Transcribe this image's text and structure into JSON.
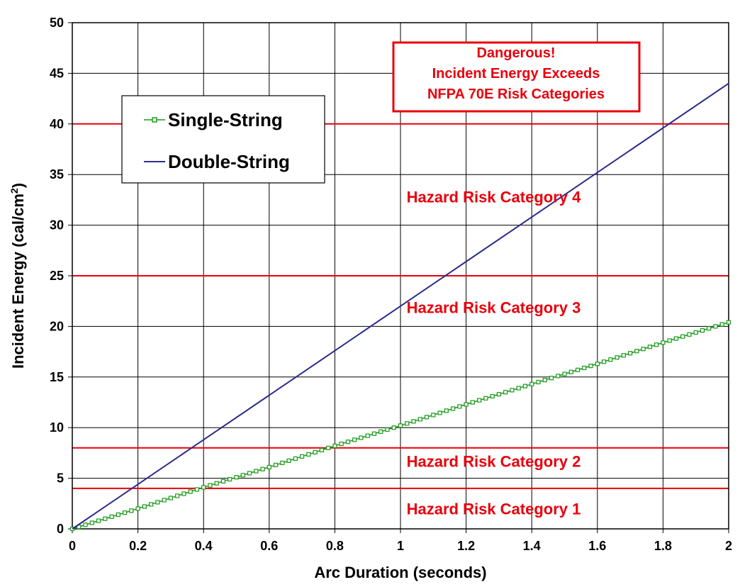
{
  "chart_data": {
    "type": "line",
    "title": "",
    "xlabel": "Arc Duration (seconds)",
    "ylabel_main": "Incident Energy (cal/cm",
    "ylabel_sup": "2",
    "ylabel_close": ")",
    "xlim": [
      0,
      2
    ],
    "ylim": [
      0,
      50
    ],
    "x_ticks": [
      "0",
      "0.2",
      "0.4",
      "0.6",
      "0.8",
      "1",
      "1.2",
      "1.4",
      "1.6",
      "1.8",
      "2"
    ],
    "y_ticks": [
      "0",
      "5",
      "10",
      "15",
      "20",
      "25",
      "30",
      "35",
      "40",
      "45",
      "50"
    ],
    "grid": true,
    "legend_position": "upper-left",
    "series": [
      {
        "name": "Single-String",
        "color": "#1a9a1a",
        "marker": "square",
        "x": [
          0,
          0.2,
          0.4,
          0.6,
          0.8,
          1.0,
          1.2,
          1.4,
          1.6,
          1.8,
          2.0
        ],
        "y": [
          0,
          2.0,
          4.1,
          6.1,
          8.2,
          10.2,
          12.3,
          14.3,
          16.3,
          18.4,
          20.4
        ]
      },
      {
        "name": "Double-String",
        "color": "#2b2b8c",
        "marker": "none",
        "x": [
          0,
          0.2,
          0.4,
          0.6,
          0.8,
          1.0,
          1.2,
          1.4,
          1.6,
          1.8,
          2.0
        ],
        "y": [
          0,
          4.4,
          8.8,
          13.2,
          17.6,
          22.0,
          26.4,
          30.8,
          35.2,
          39.6,
          44.0
        ]
      }
    ],
    "threshold_lines": [
      4,
      8,
      25,
      40
    ],
    "threshold_color": "#e8000b",
    "zone_labels": [
      {
        "text": "Hazard Risk Category 1",
        "x": 1.2,
        "y": 2.0
      },
      {
        "text": "Hazard Risk Category 2",
        "x": 1.2,
        "y": 6.7
      },
      {
        "text": "Hazard Risk Category 3",
        "x": 1.2,
        "y": 21.9
      },
      {
        "text": "Hazard Risk Category 4",
        "x": 1.2,
        "y": 32.8
      }
    ],
    "warning_box": {
      "lines": [
        "Dangerous!",
        "Incident Energy Exceeds",
        "NFPA 70E Risk Categories"
      ],
      "color": "#e8000b"
    }
  }
}
